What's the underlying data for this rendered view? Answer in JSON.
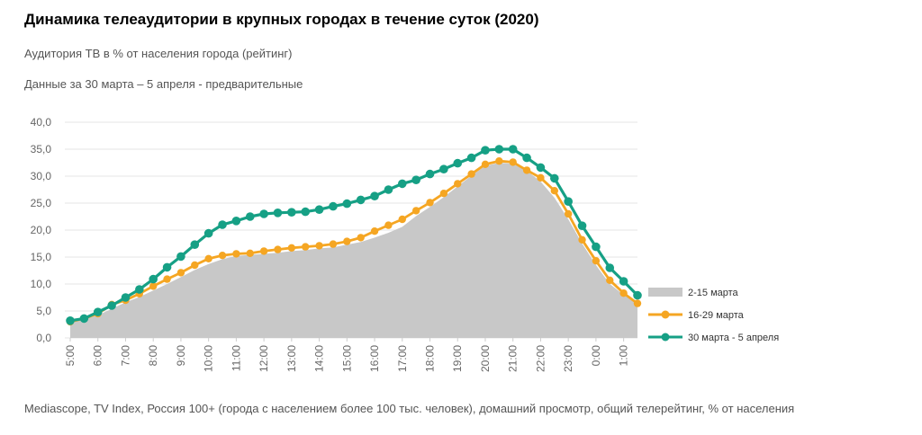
{
  "header": {
    "title": "Динамика телеаудитории в крупных городах в течение суток (2020)",
    "subtitle": "Аудитория ТВ в % от населения города (рейтинг)",
    "period": "Данные за 30 марта – 5 апреля - предварительные"
  },
  "footer": {
    "source": "Mediascope, TV Index, Россия 100+ (города с населением более 100 тыс. человек), домашний просмотр, общий телерейтинг, % от населения"
  },
  "colors": {
    "area": "#c8c8c8",
    "orange": "#f5a623",
    "teal": "#16a085",
    "grid": "#e6e6e6"
  },
  "chart_data": {
    "type": "line",
    "title": "Динамика телеаудитории в крупных городах в течение суток (2020)",
    "ylabel": "Аудитория ТВ в % от населения города (рейтинг)",
    "ylim": [
      0,
      40
    ],
    "y_ticks": [
      "0,0",
      "5,0",
      "10,0",
      "15,0",
      "20,0",
      "25,0",
      "30,0",
      "35,0",
      "40,0"
    ],
    "x_tick_labels": [
      "5:00",
      "6:00",
      "7:00",
      "8:00",
      "9:00",
      "10:00",
      "11:00",
      "12:00",
      "13:00",
      "14:00",
      "15:00",
      "16:00",
      "17:00",
      "18:00",
      "19:00",
      "20:00",
      "21:00",
      "22:00",
      "23:00",
      "0:00",
      "1:00"
    ],
    "x": [
      5.0,
      5.5,
      6.0,
      6.5,
      7.0,
      7.5,
      8.0,
      8.5,
      9.0,
      9.5,
      10.0,
      10.5,
      11.0,
      11.5,
      12.0,
      12.5,
      13.0,
      13.5,
      14.0,
      14.5,
      15.0,
      15.5,
      16.0,
      16.5,
      17.0,
      17.5,
      18.0,
      18.5,
      19.0,
      19.5,
      20.0,
      20.5,
      21.0,
      21.5,
      22.0,
      22.5,
      23.0,
      23.5,
      24.0,
      24.5,
      25.0,
      25.5
    ],
    "legend_position": "right",
    "series": [
      {
        "name": "2-15 марта",
        "style": "area",
        "values": [
          2.8,
          3.4,
          4.2,
          5.4,
          6.6,
          7.6,
          8.8,
          10.0,
          11.3,
          12.6,
          13.7,
          14.6,
          15.2,
          15.4,
          15.6,
          15.8,
          16.1,
          16.3,
          16.6,
          16.8,
          17.3,
          17.8,
          18.6,
          19.5,
          20.6,
          22.6,
          24.3,
          26.1,
          28.1,
          30.1,
          31.9,
          32.5,
          32.3,
          31.0,
          29.0,
          26.0,
          22.0,
          17.5,
          13.5,
          10.0,
          8.0,
          6.2
        ]
      },
      {
        "name": "16-29 марта",
        "style": "line",
        "values": [
          3.0,
          3.6,
          4.5,
          6.2,
          7.0,
          8.2,
          9.6,
          10.9,
          12.1,
          13.5,
          14.7,
          15.3,
          15.6,
          15.7,
          16.1,
          16.4,
          16.7,
          16.9,
          17.1,
          17.4,
          17.9,
          18.6,
          19.8,
          20.9,
          22.0,
          23.6,
          25.1,
          26.8,
          28.6,
          30.4,
          32.2,
          32.8,
          32.6,
          31.1,
          29.7,
          27.3,
          23.0,
          18.2,
          14.3,
          10.7,
          8.3,
          6.4
        ]
      },
      {
        "name": "30 марта - 5 апреля",
        "style": "line",
        "values": [
          3.2,
          3.6,
          4.8,
          6.0,
          7.5,
          9.0,
          10.9,
          13.1,
          15.1,
          17.3,
          19.4,
          21.0,
          21.7,
          22.5,
          23.0,
          23.2,
          23.3,
          23.4,
          23.8,
          24.4,
          24.9,
          25.6,
          26.3,
          27.5,
          28.6,
          29.3,
          30.4,
          31.3,
          32.4,
          33.4,
          34.8,
          35.0,
          35.0,
          33.4,
          31.6,
          29.6,
          25.3,
          20.8,
          16.9,
          13.0,
          10.5,
          7.9
        ]
      }
    ]
  }
}
